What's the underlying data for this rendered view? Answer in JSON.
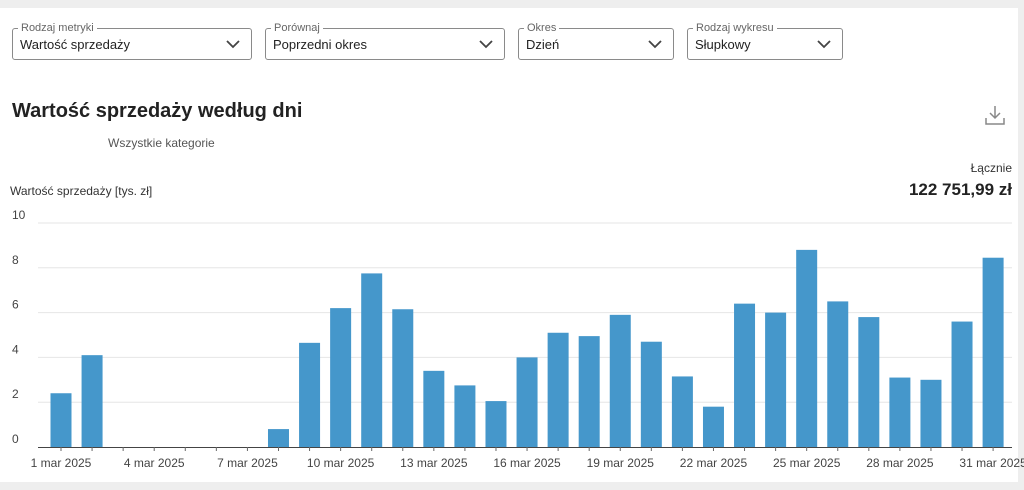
{
  "filters": [
    {
      "label": "Rodzaj metryki",
      "value": "Wartość sprzedaży"
    },
    {
      "label": "Porównaj",
      "value": "Poprzedni okres"
    },
    {
      "label": "Okres",
      "value": "Dzień"
    },
    {
      "label": "Rodzaj wykresu",
      "value": "Słupkowy"
    }
  ],
  "header": {
    "title": "Wartość sprzedaży według dni",
    "subtitle": "Wszystkie kategorie",
    "download_icon": "download-icon"
  },
  "summary": {
    "total_label": "Łącznie",
    "total_value": "122 751,99 zł"
  },
  "chart_data": {
    "type": "bar",
    "ylabel": "Wartość sprzedaży [tys. zł]",
    "ylim": [
      0,
      10
    ],
    "y_ticks": [
      0,
      2,
      4,
      6,
      8,
      10
    ],
    "grid": true,
    "bar_color": "#4597cb",
    "x_tick_labels": [
      "1 mar 2025",
      "4 mar 2025",
      "7 mar 2025",
      "10 mar 2025",
      "13 mar 2025",
      "16 mar 2025",
      "19 mar 2025",
      "22 mar 2025",
      "25 mar 2025",
      "28 mar 2025",
      "31 mar 2025"
    ],
    "categories": [
      "1 mar 2025",
      "2 mar 2025",
      "3 mar 2025",
      "4 mar 2025",
      "5 mar 2025",
      "6 mar 2025",
      "7 mar 2025",
      "8 mar 2025",
      "9 mar 2025",
      "10 mar 2025",
      "11 mar 2025",
      "12 mar 2025",
      "13 mar 2025",
      "14 mar 2025",
      "15 mar 2025",
      "16 mar 2025",
      "17 mar 2025",
      "18 mar 2025",
      "19 mar 2025",
      "20 mar 2025",
      "21 mar 2025",
      "22 mar 2025",
      "23 mar 2025",
      "24 mar 2025",
      "25 mar 2025",
      "26 mar 2025",
      "27 mar 2025",
      "28 mar 2025",
      "29 mar 2025",
      "30 mar 2025",
      "31 mar 2025"
    ],
    "values": [
      2.4,
      4.1,
      0,
      0,
      0,
      0,
      0,
      0.8,
      4.65,
      6.2,
      7.75,
      6.15,
      3.4,
      2.75,
      2.05,
      4.0,
      5.1,
      4.95,
      5.9,
      4.7,
      3.15,
      1.8,
      6.4,
      6.0,
      8.8,
      6.5,
      5.8,
      3.1,
      3.0,
      5.6,
      8.45
    ]
  }
}
